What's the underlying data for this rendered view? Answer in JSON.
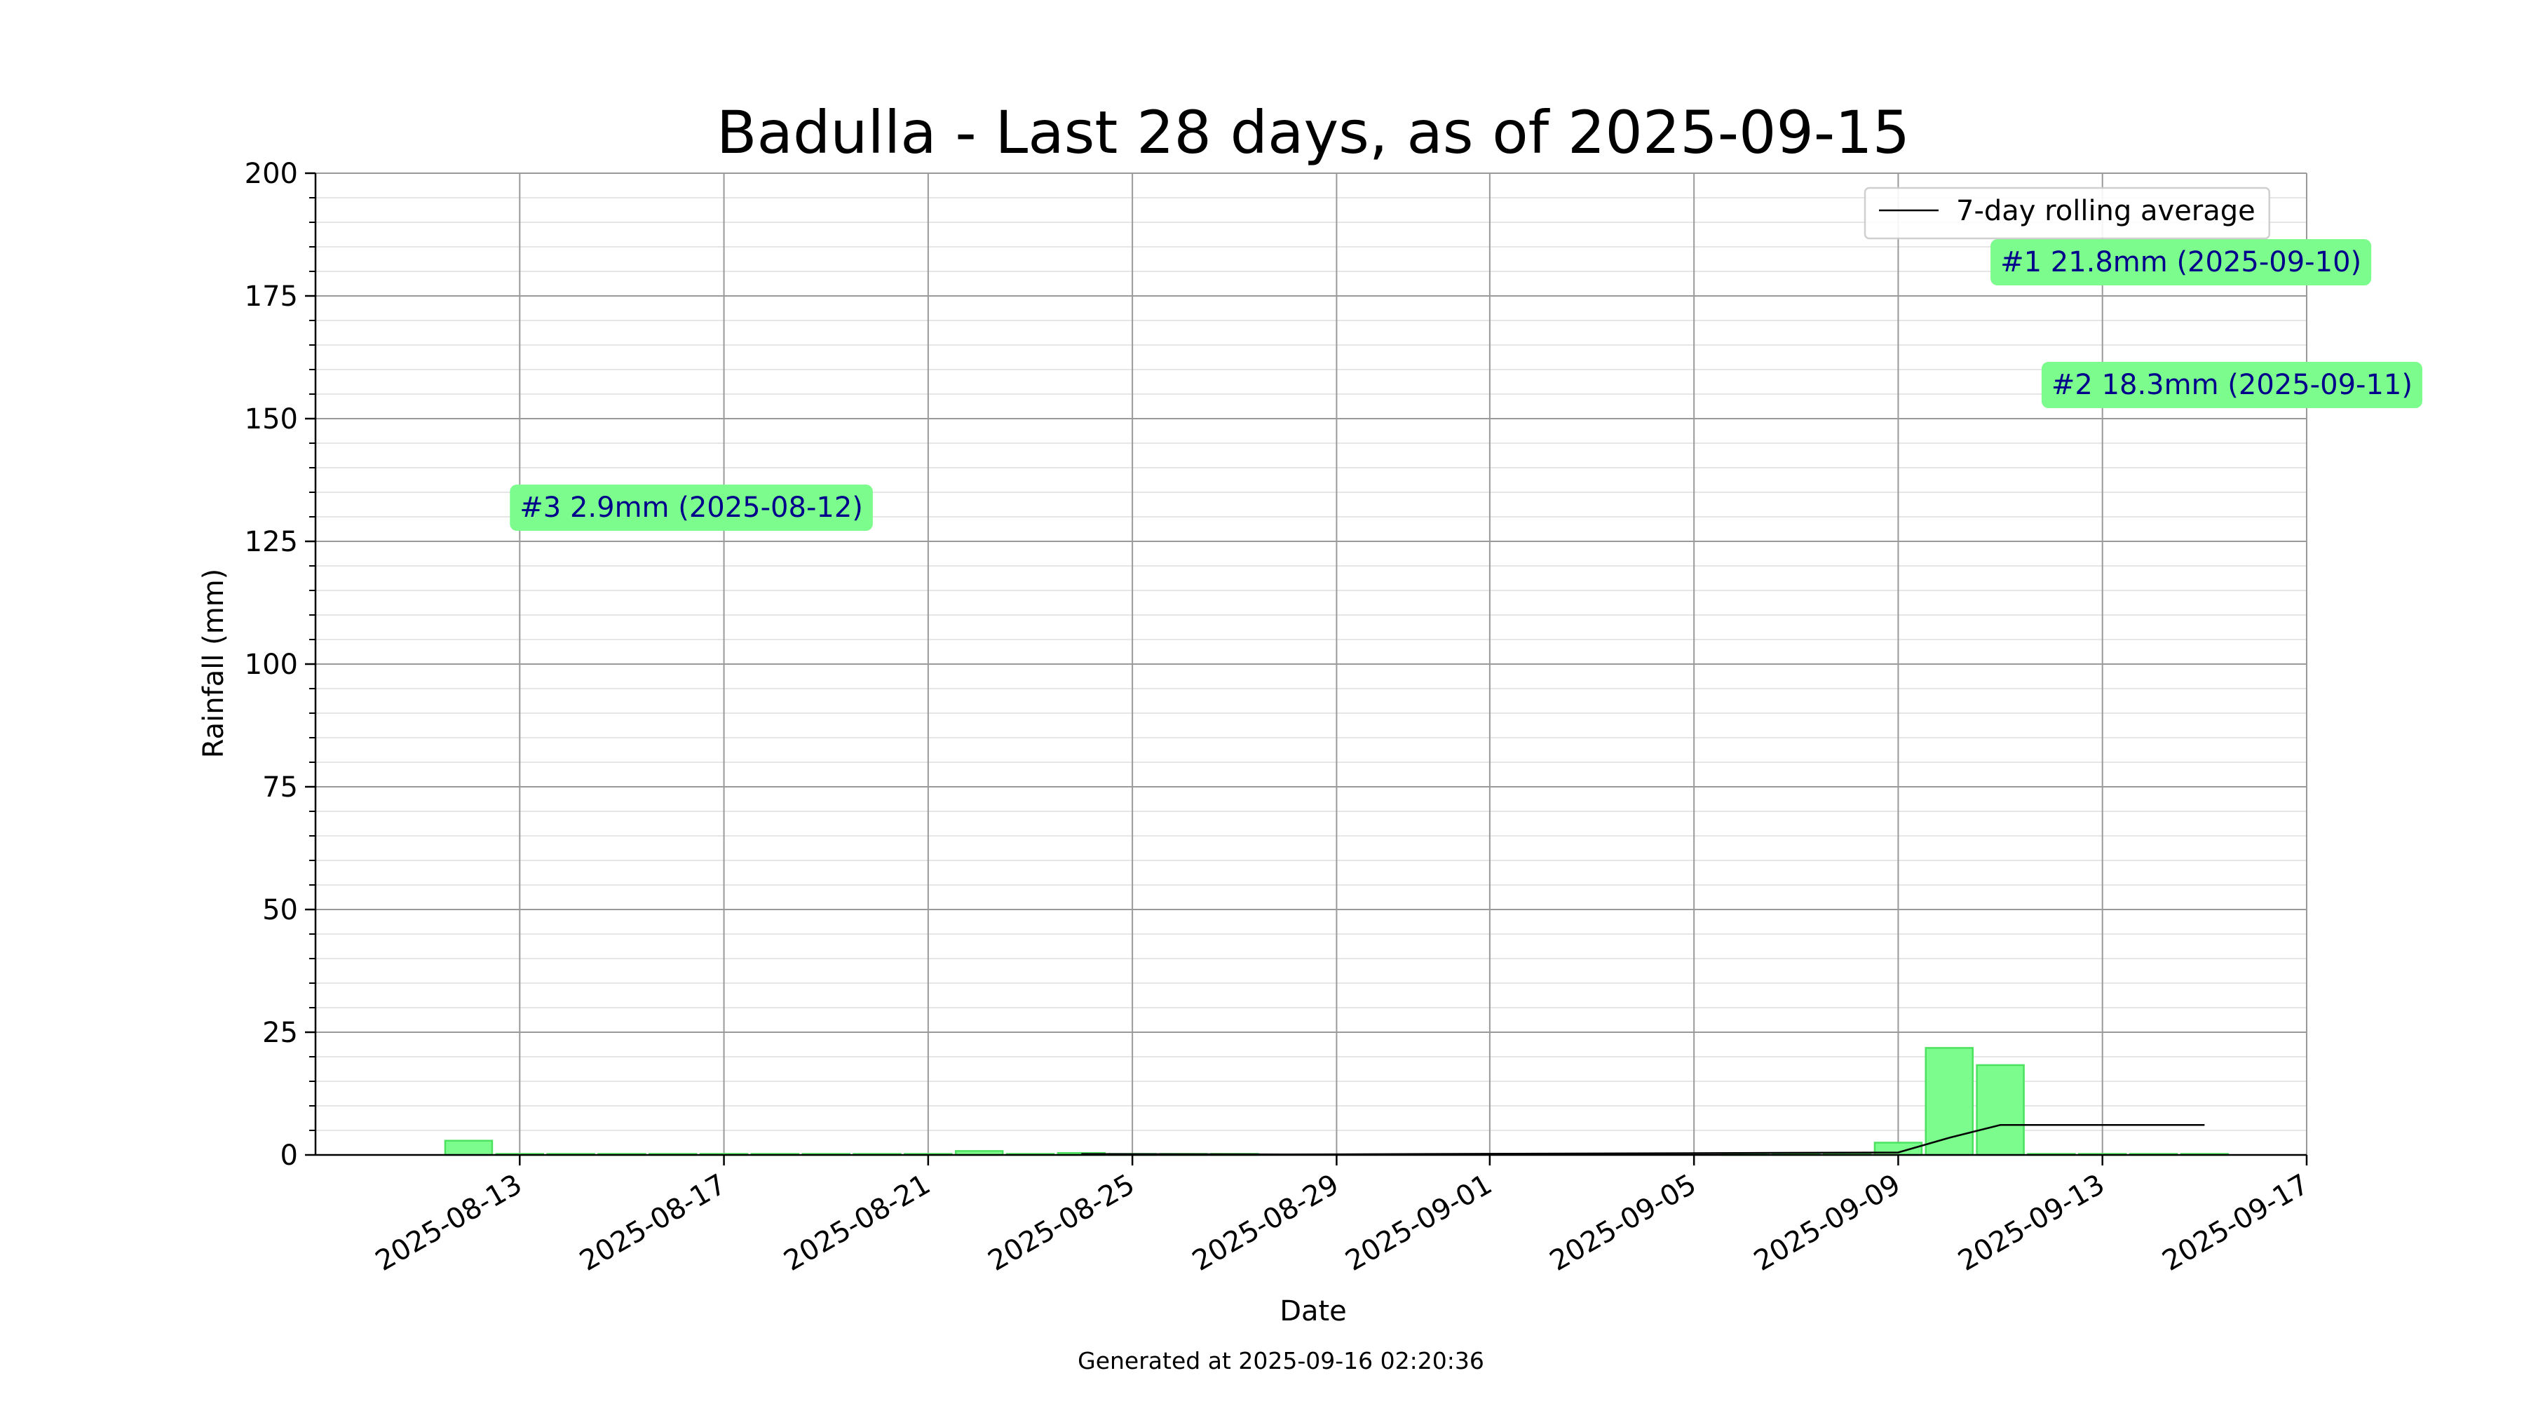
{
  "chart_data": {
    "type": "bar",
    "title": "Badulla - Last 28 days, as of 2025-09-15",
    "xlabel": "Date",
    "ylabel": "Rainfall (mm)",
    "footer": "Generated at 2025-09-16 02:20:36",
    "ylim": [
      0,
      200
    ],
    "xlim": [
      "2025-08-09",
      "2025-09-17"
    ],
    "y_major_ticks": [
      0,
      25,
      50,
      75,
      100,
      125,
      150,
      175,
      200
    ],
    "y_minor_step": 5,
    "x_ticks": [
      "2025-08-13",
      "2025-08-17",
      "2025-08-21",
      "2025-08-25",
      "2025-08-29",
      "2025-09-01",
      "2025-09-05",
      "2025-09-09",
      "2025-09-13",
      "2025-09-17"
    ],
    "grid": true,
    "bar_color": "#7cfc8c",
    "bar_edge_color": "#4ce25f",
    "bars": [
      {
        "date": "2025-08-12",
        "value": 2.9
      },
      {
        "date": "2025-08-13",
        "value": 0.0
      },
      {
        "date": "2025-08-14",
        "value": 0.0
      },
      {
        "date": "2025-08-15",
        "value": 0.0
      },
      {
        "date": "2025-08-16",
        "value": 0.0
      },
      {
        "date": "2025-08-17",
        "value": 0.0
      },
      {
        "date": "2025-08-18",
        "value": 0.0
      },
      {
        "date": "2025-08-19",
        "value": 0.0
      },
      {
        "date": "2025-08-20",
        "value": 0.0
      },
      {
        "date": "2025-08-21",
        "value": 0.0
      },
      {
        "date": "2025-08-22",
        "value": 0.8
      },
      {
        "date": "2025-08-23",
        "value": 0.0
      },
      {
        "date": "2025-08-24",
        "value": 0.4
      },
      {
        "date": "2025-08-25",
        "value": 0.1
      },
      {
        "date": "2025-08-26",
        "value": 0.0
      },
      {
        "date": "2025-08-27",
        "value": 0.0
      },
      {
        "date": "2025-09-06",
        "value": 0.0
      },
      {
        "date": "2025-09-07",
        "value": 0.0
      },
      {
        "date": "2025-09-08",
        "value": 0.0
      },
      {
        "date": "2025-09-09",
        "value": 2.5
      },
      {
        "date": "2025-09-10",
        "value": 21.8
      },
      {
        "date": "2025-09-11",
        "value": 18.3
      },
      {
        "date": "2025-09-12",
        "value": 0.0
      },
      {
        "date": "2025-09-13",
        "value": 0.0
      },
      {
        "date": "2025-09-14",
        "value": 0.0
      },
      {
        "date": "2025-09-15",
        "value": 0.0
      }
    ],
    "series": [
      {
        "name": "7-day rolling average",
        "color": "#000000",
        "points": [
          {
            "date": "2025-08-24",
            "value": 0.2
          },
          {
            "date": "2025-08-28",
            "value": 0.1
          },
          {
            "date": "2025-09-09",
            "value": 0.5
          },
          {
            "date": "2025-09-10",
            "value": 3.5
          },
          {
            "date": "2025-09-11",
            "value": 6.1
          },
          {
            "date": "2025-09-12",
            "value": 6.1
          },
          {
            "date": "2025-09-13",
            "value": 6.1
          },
          {
            "date": "2025-09-14",
            "value": 6.1
          },
          {
            "date": "2025-09-15",
            "value": 6.1
          }
        ]
      }
    ],
    "annotations": [
      {
        "text": "#1 21.8mm (2025-09-10)",
        "x_date": "2025-09-11",
        "y": 182,
        "color": "#00008b",
        "bg": "#7cfc8c"
      },
      {
        "text": "#2 18.3mm (2025-09-11)",
        "x_date": "2025-09-12",
        "y": 157,
        "color": "#00008b",
        "bg": "#7cfc8c"
      },
      {
        "text": "#3 2.9mm (2025-08-12)",
        "x_date": "2025-08-13",
        "y": 132,
        "color": "#00008b",
        "bg": "#7cfc8c"
      }
    ],
    "legend": {
      "placement": "top-right",
      "entries": [
        "7-day rolling average"
      ]
    }
  }
}
